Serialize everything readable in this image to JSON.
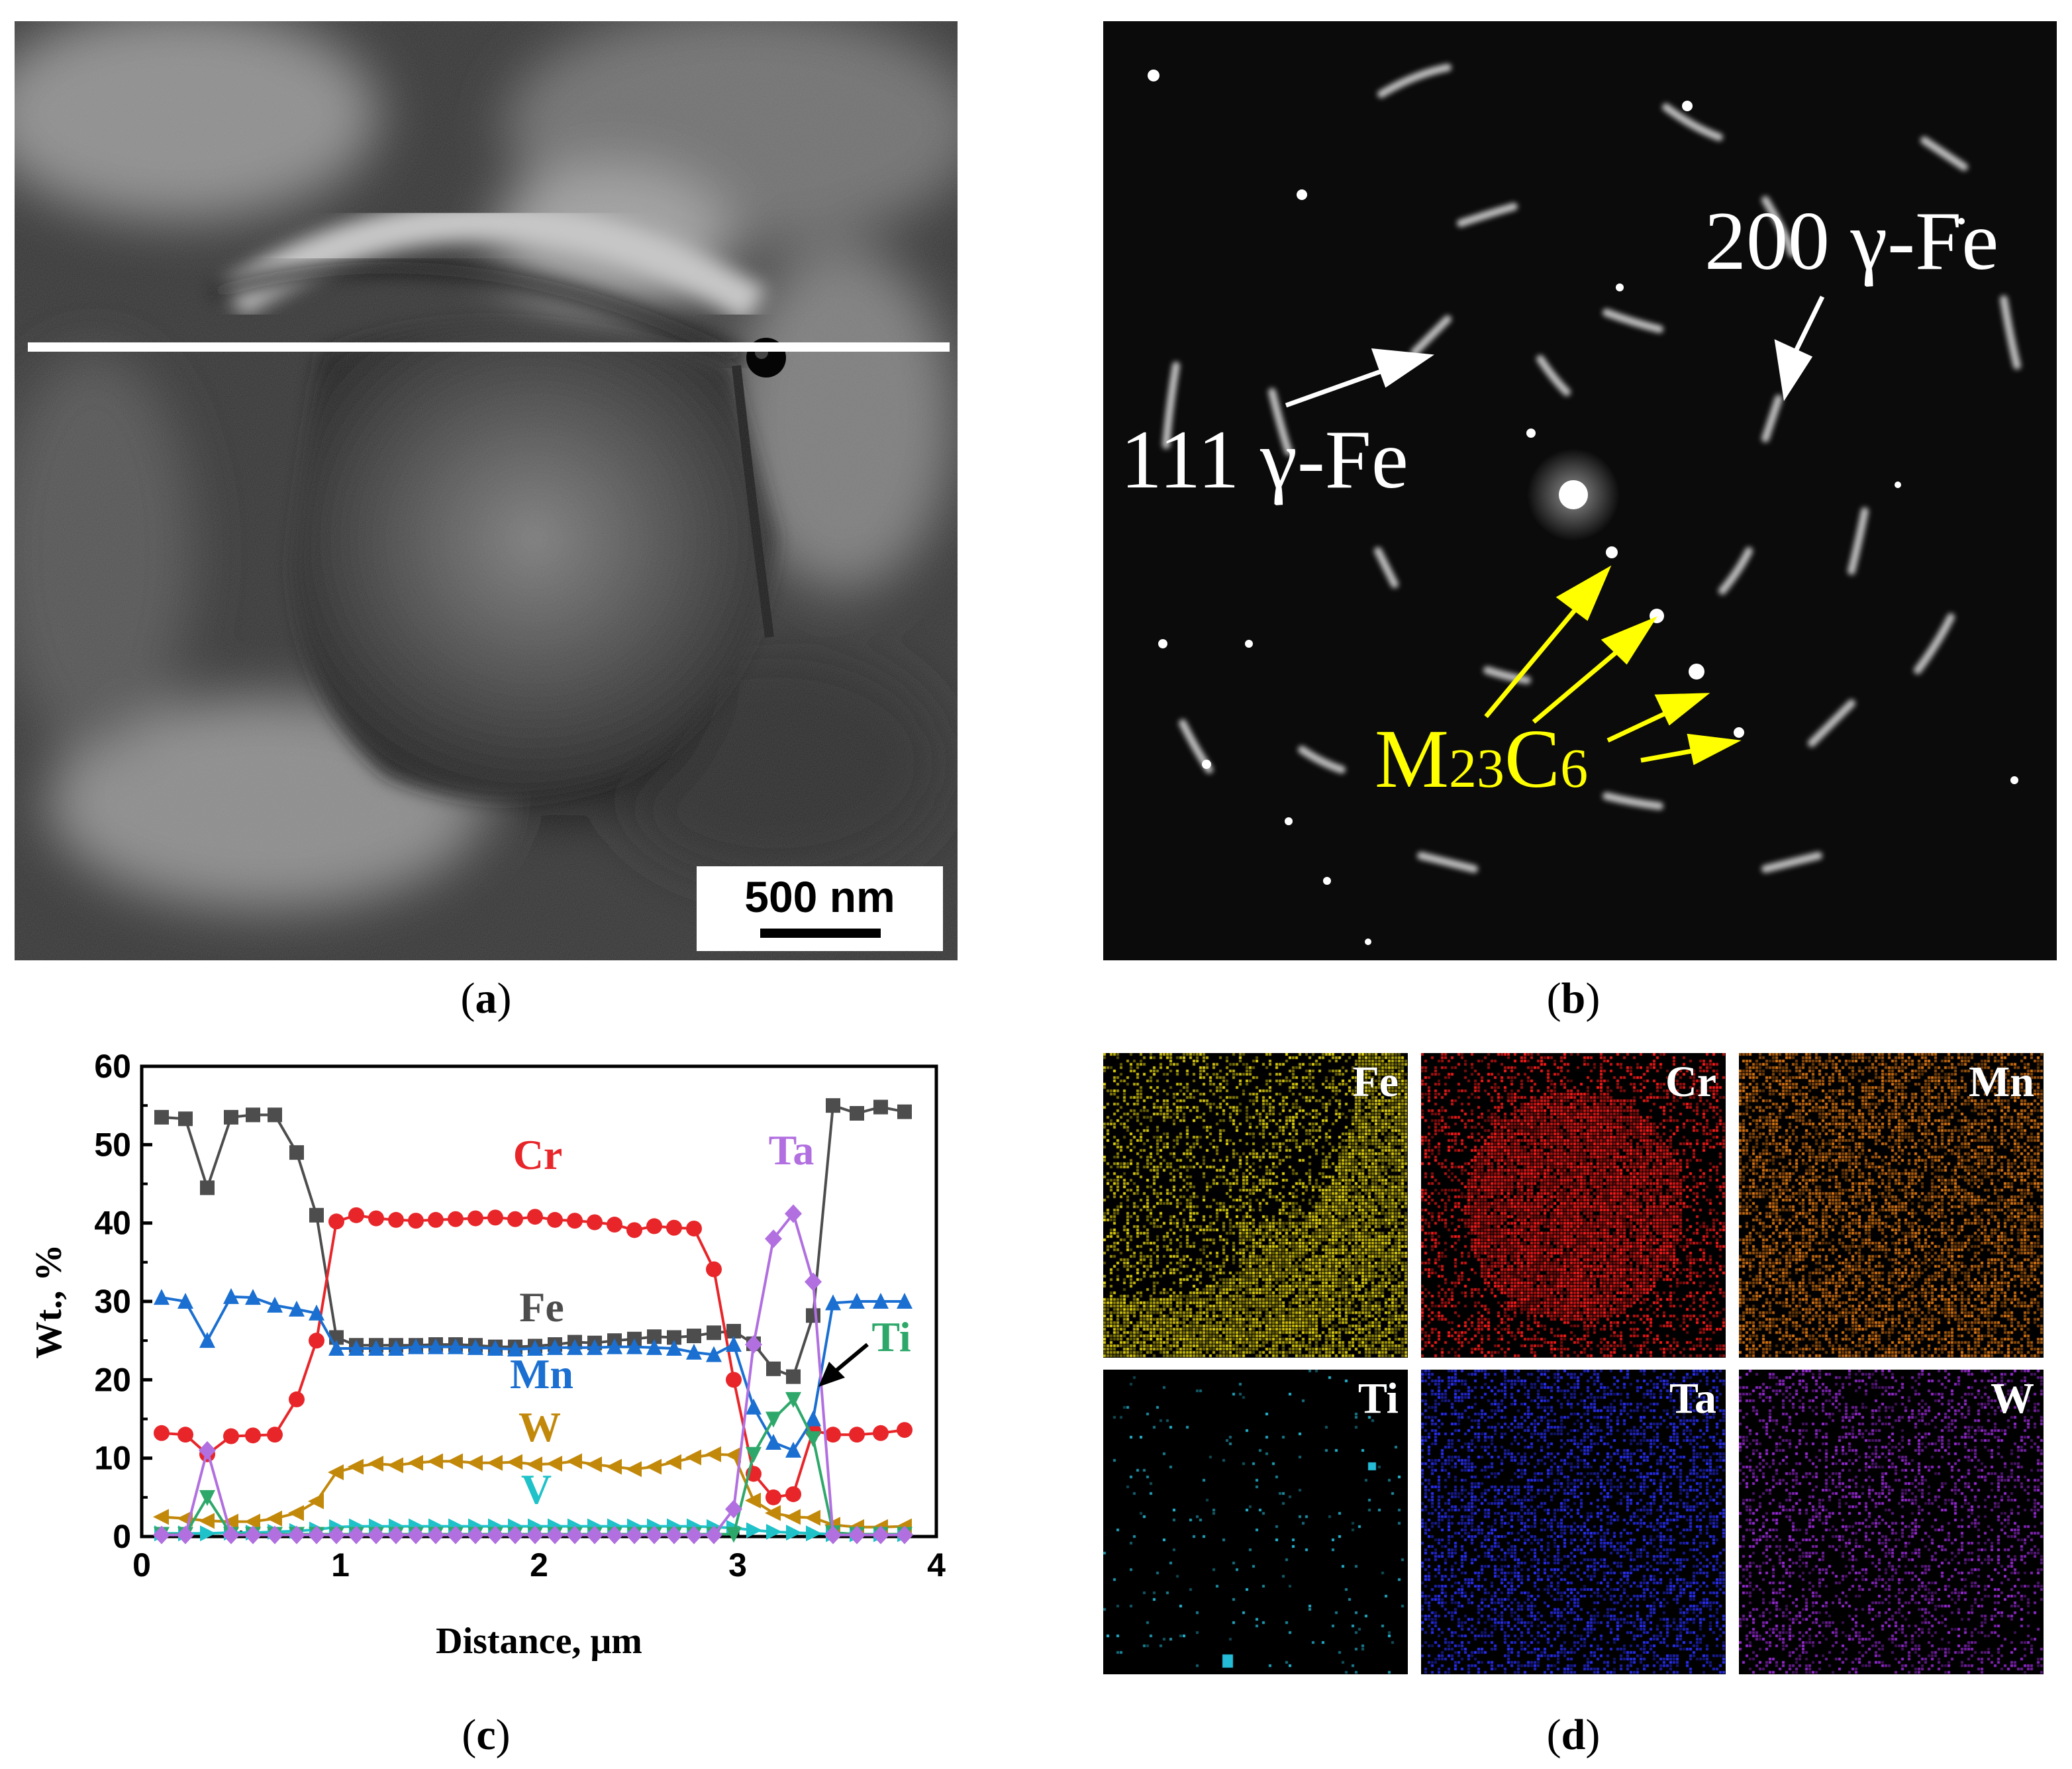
{
  "panel_a": {
    "scale_bar_text": "500 nm",
    "caption_letter": "a"
  },
  "panel_b": {
    "label_200": "200 γ-Fe",
    "label_111": "111 γ-Fe",
    "label_m": "M",
    "label_sub23": "23",
    "label_c": "C",
    "label_sub6": "6",
    "caption_letter": "b",
    "colors": {
      "annotation": "#ffff00"
    }
  },
  "panel_d": {
    "caption_letter": "d",
    "maps": [
      {
        "label": "Fe",
        "color": "#e4d40c"
      },
      {
        "label": "Cr",
        "color": "#ff1a1a"
      },
      {
        "label": "Mn",
        "color": "#e07810"
      },
      {
        "label": "Ti",
        "color": "#25bcd8"
      },
      {
        "label": "Ta",
        "color": "#2a30ff"
      },
      {
        "label": "W",
        "color": "#9a2ad8"
      }
    ]
  },
  "chart_data": {
    "type": "line",
    "caption_letter": "c",
    "xlabel": "Distance, μm",
    "ylabel": "Wt., %",
    "xlim": [
      0,
      4
    ],
    "ylim": [
      0,
      60
    ],
    "xticks": [
      "0",
      "1",
      "2",
      "3",
      "4"
    ],
    "yticks": [
      "0",
      "10",
      "20",
      "30",
      "40",
      "50",
      "60"
    ],
    "x": [
      0.1,
      0.22,
      0.33,
      0.45,
      0.56,
      0.67,
      0.78,
      0.88,
      0.98,
      1.08,
      1.18,
      1.28,
      1.38,
      1.48,
      1.58,
      1.68,
      1.78,
      1.88,
      1.98,
      2.08,
      2.18,
      2.28,
      2.38,
      2.48,
      2.58,
      2.68,
      2.78,
      2.88,
      2.98,
      3.08,
      3.18,
      3.28,
      3.38,
      3.48,
      3.6,
      3.72,
      3.84
    ],
    "series": [
      {
        "name": "Fe",
        "color": "#4d4d4d",
        "marker": "square",
        "label_text": "Fe",
        "values": [
          53.5,
          53.3,
          44.5,
          53.5,
          53.8,
          53.8,
          49,
          41,
          25.4,
          24.4,
          24.4,
          24.4,
          24.4,
          24.5,
          24.5,
          24.4,
          24.2,
          24.2,
          24.3,
          24.5,
          24.8,
          24.7,
          25,
          25.2,
          25.5,
          25.4,
          25.6,
          26,
          26.2,
          24.6,
          21.4,
          20.4,
          28.2,
          55,
          54,
          54.8,
          54.2
        ]
      },
      {
        "name": "Cr",
        "color": "#e8262a",
        "marker": "circle",
        "label_text": "Cr",
        "values": [
          13.2,
          13,
          10.5,
          12.8,
          12.9,
          13,
          17.5,
          25,
          40.2,
          41,
          40.6,
          40.4,
          40.3,
          40.4,
          40.5,
          40.6,
          40.7,
          40.5,
          40.8,
          40.4,
          40.3,
          40.1,
          39.8,
          39.1,
          39.6,
          39.4,
          39.3,
          34.1,
          20,
          8,
          5,
          5.4,
          13.5,
          13,
          13,
          13.2,
          13.6
        ]
      },
      {
        "name": "Mn",
        "color": "#1a6fd1",
        "marker": "triangle-up",
        "label_text": "Mn",
        "values": [
          30.5,
          30,
          25,
          30.6,
          30.5,
          29.5,
          29,
          28.5,
          24,
          24,
          24,
          24,
          24.2,
          24.2,
          24.2,
          24.1,
          24,
          23.9,
          24,
          24.1,
          24.1,
          24.1,
          24.2,
          24.2,
          24.1,
          24,
          23.5,
          23.2,
          24.5,
          16.5,
          12,
          11,
          15,
          29.8,
          30,
          30,
          30
        ]
      },
      {
        "name": "W",
        "color": "#c2880a",
        "marker": "triangle-left",
        "label_text": "W",
        "values": [
          2.5,
          2.3,
          2,
          1.9,
          1.9,
          2.3,
          3,
          4.5,
          8.2,
          8.9,
          9.3,
          9.1,
          9.4,
          9.6,
          9.6,
          9.4,
          9.4,
          9.5,
          9.2,
          9.3,
          9.6,
          9.2,
          8.9,
          8.6,
          8.9,
          9.5,
          10.1,
          10.5,
          10.4,
          4.6,
          3,
          2.5,
          2.4,
          1.5,
          1.2,
          1.2,
          1.3
        ]
      },
      {
        "name": "V",
        "color": "#1fc2c8",
        "marker": "triangle-right",
        "label_text": "V",
        "values": [
          0.4,
          0.4,
          0.4,
          0.5,
          0.5,
          0.6,
          0.7,
          0.9,
          1.2,
          1.3,
          1.3,
          1.3,
          1.3,
          1.3,
          1.3,
          1.3,
          1.3,
          1.3,
          1.3,
          1.3,
          1.3,
          1.3,
          1.3,
          1.3,
          1.3,
          1.3,
          1.3,
          1.2,
          1.1,
          0.8,
          0.6,
          0.5,
          0.4,
          0.3,
          0.3,
          0.3,
          0.3
        ]
      },
      {
        "name": "Ti",
        "color": "#2ea86a",
        "marker": "triangle-down",
        "label_text": "Ti",
        "values": [
          0.3,
          0.3,
          5,
          0.3,
          0.3,
          0.3,
          0.3,
          0.3,
          0.3,
          0.3,
          0.3,
          0.3,
          0.3,
          0.3,
          0.3,
          0.3,
          0.3,
          0.3,
          0.3,
          0.3,
          0.3,
          0.3,
          0.3,
          0.3,
          0.3,
          0.3,
          0.3,
          0.3,
          0.3,
          10.5,
          15,
          17.5,
          12.5,
          0.5,
          0.3,
          0.3,
          0.3
        ]
      },
      {
        "name": "Ta",
        "color": "#b16fe0",
        "marker": "diamond",
        "label_text": "Ta",
        "values": [
          0.2,
          0.2,
          11,
          0.2,
          0.2,
          0.2,
          0.2,
          0.2,
          0.2,
          0.2,
          0.2,
          0.2,
          0.2,
          0.2,
          0.2,
          0.2,
          0.2,
          0.2,
          0.2,
          0.2,
          0.2,
          0.2,
          0.2,
          0.2,
          0.2,
          0.2,
          0.2,
          0.2,
          3.5,
          24.5,
          38,
          41.2,
          32.5,
          0.2,
          0.2,
          0.2,
          0.2
        ]
      }
    ]
  }
}
